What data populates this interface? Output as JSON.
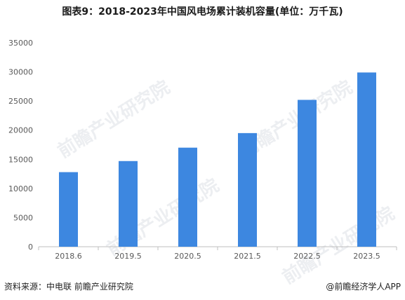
{
  "title": "图表9：2018-2023年中国风电场累计装机容量(单位：万千瓦)",
  "footer": {
    "source": "资料来源：中电联 前瞻产业研究院",
    "brand": "@前瞻经济学人APP"
  },
  "watermark": "前瞻产业研究院",
  "colors": {
    "bar": "#3d87e0",
    "axis": "#bfbfbf",
    "tick_text": "#595959"
  },
  "chart_data": {
    "type": "bar",
    "categories": [
      "2018.6",
      "2019.5",
      "2020.5",
      "2021.5",
      "2022.5",
      "2023.5"
    ],
    "values": [
      12800,
      14700,
      17000,
      19500,
      25200,
      29900
    ],
    "ylim": [
      0,
      35000
    ],
    "yticks": [
      0,
      5000,
      10000,
      15000,
      20000,
      25000,
      30000,
      35000
    ],
    "grid": false,
    "title": "",
    "xlabel": "",
    "ylabel": ""
  }
}
